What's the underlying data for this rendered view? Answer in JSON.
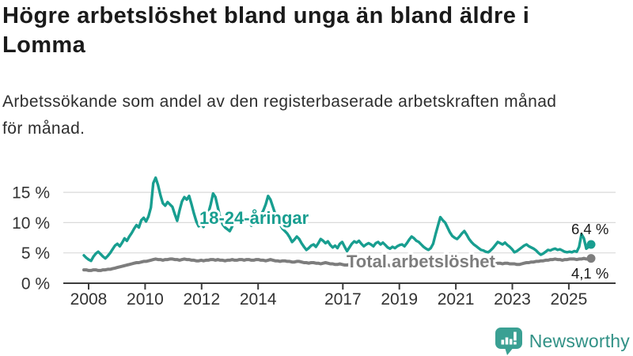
{
  "header": {
    "title": "Högre arbetslöshet bland unga än bland äldre i Lomma",
    "subtitle": "Arbetssökande som andel av den registerbaserade arbetskraften månad för månad."
  },
  "chart_data": {
    "type": "line",
    "title": "Högre arbetslöshet bland unga än bland äldre i Lomma",
    "x_unit": "month",
    "x_start": "2008-01",
    "x_end": "2025-09",
    "x_tick_labels": [
      "2008",
      "2010",
      "2012",
      "2014",
      "2017",
      "2019",
      "2021",
      "2023",
      "2025"
    ],
    "y_ticks": [
      0,
      5,
      10,
      15
    ],
    "y_tick_labels": [
      "0 %",
      "5 %",
      "10 %",
      "15 %"
    ],
    "ylim": [
      0,
      18.5
    ],
    "grid": "horizontal",
    "legend_position": "inline-labels",
    "series": [
      {
        "name": "18-24-åringar",
        "color": "#189e90",
        "end_label": "6,4 %",
        "end_value": 6.4,
        "values": [
          4.6,
          4.2,
          3.9,
          3.7,
          4.4,
          4.9,
          5.2,
          4.8,
          4.4,
          4.1,
          4.5,
          5.0,
          5.6,
          6.2,
          6.5,
          6.1,
          6.7,
          7.4,
          7.0,
          7.7,
          8.3,
          9.0,
          9.6,
          9.2,
          10.4,
          10.8,
          10.2,
          11.0,
          12.5,
          16.5,
          17.4,
          16.2,
          14.5,
          13.2,
          12.8,
          13.4,
          13.0,
          12.6,
          11.4,
          10.3,
          12.0,
          13.5,
          14.2,
          13.8,
          14.4,
          13.0,
          11.5,
          10.2,
          9.4,
          9.8,
          9.3,
          10.5,
          11.5,
          13.0,
          14.8,
          14.2,
          12.5,
          10.8,
          9.7,
          9.2,
          8.9,
          8.6,
          9.4,
          10.2,
          11.0,
          11.8,
          11.2,
          10.4,
          10.9,
          10.2,
          9.5,
          9.8,
          10.2,
          10.8,
          11.3,
          12.0,
          13.0,
          14.4,
          13.8,
          12.6,
          11.4,
          10.5,
          9.7,
          9.0,
          8.6,
          8.2,
          7.6,
          6.8,
          7.2,
          7.7,
          7.3,
          6.6,
          6.0,
          5.5,
          5.8,
          6.2,
          6.4,
          6.0,
          6.6,
          7.3,
          7.0,
          6.6,
          6.9,
          6.3,
          5.9,
          6.2,
          5.8,
          6.5,
          6.8,
          6.0,
          5.3,
          5.9,
          6.5,
          6.9,
          6.7,
          7.0,
          6.5,
          6.1,
          6.4,
          6.6,
          6.4,
          6.1,
          6.6,
          6.8,
          6.4,
          6.7,
          6.3,
          5.9,
          5.7,
          6.0,
          5.8,
          6.1,
          6.3,
          6.4,
          6.1,
          6.6,
          7.2,
          7.7,
          7.4,
          7.0,
          6.8,
          6.4,
          6.0,
          5.7,
          5.5,
          5.8,
          6.5,
          8.1,
          9.5,
          10.9,
          10.4,
          10.0,
          9.2,
          8.4,
          7.8,
          7.5,
          7.3,
          7.7,
          8.2,
          8.6,
          8.0,
          7.3,
          6.8,
          6.4,
          6.1,
          5.8,
          5.5,
          5.4,
          5.2,
          5.1,
          5.4,
          5.8,
          6.3,
          6.8,
          6.6,
          6.4,
          6.7,
          6.3,
          6.0,
          5.6,
          5.1,
          5.3,
          5.6,
          5.9,
          6.2,
          6.4,
          6.1,
          5.9,
          5.7,
          5.4,
          5.0,
          4.7,
          4.9,
          5.2,
          5.5,
          5.4,
          5.6,
          5.7,
          5.5,
          5.6,
          5.4,
          5.2,
          5.1,
          5.2,
          5.1,
          5.3,
          5.2,
          6.0,
          8.1,
          7.4,
          5.7,
          6.0,
          6.4
        ]
      },
      {
        "name": "Total arbetslöshet",
        "color": "#7d7d7d",
        "end_label": "4,1 %",
        "end_value": 4.1,
        "values": [
          2.2,
          2.2,
          2.1,
          2.1,
          2.2,
          2.2,
          2.1,
          2.1,
          2.2,
          2.2,
          2.3,
          2.3,
          2.4,
          2.5,
          2.6,
          2.7,
          2.8,
          2.9,
          3.0,
          3.1,
          3.2,
          3.3,
          3.4,
          3.4,
          3.5,
          3.6,
          3.6,
          3.7,
          3.8,
          3.9,
          4.0,
          3.9,
          3.9,
          3.8,
          3.9,
          3.9,
          4.0,
          4.0,
          3.9,
          3.9,
          3.8,
          3.9,
          4.0,
          3.9,
          3.9,
          3.8,
          3.8,
          3.7,
          3.7,
          3.8,
          3.7,
          3.8,
          3.8,
          3.9,
          3.9,
          3.8,
          3.9,
          3.8,
          3.8,
          3.7,
          3.8,
          3.8,
          3.9,
          3.8,
          3.8,
          3.9,
          3.9,
          3.8,
          3.9,
          3.9,
          3.8,
          3.8,
          3.9,
          3.9,
          3.8,
          3.8,
          3.7,
          3.8,
          3.9,
          3.8,
          3.7,
          3.7,
          3.6,
          3.7,
          3.7,
          3.6,
          3.6,
          3.5,
          3.5,
          3.6,
          3.6,
          3.5,
          3.4,
          3.4,
          3.3,
          3.4,
          3.4,
          3.3,
          3.3,
          3.2,
          3.3,
          3.4,
          3.3,
          3.2,
          3.2,
          3.1,
          3.1,
          3.2,
          3.1,
          3.0,
          3.0,
          3.1,
          3.1,
          3.2,
          3.1,
          3.0,
          3.0,
          3.1,
          3.0,
          3.0,
          3.0,
          2.9,
          3.0,
          3.0,
          2.9,
          3.0,
          3.1,
          3.0,
          2.9,
          3.0,
          3.0,
          3.1,
          3.1,
          3.1,
          3.0,
          3.1,
          3.2,
          3.2,
          3.3,
          3.2,
          3.2,
          3.2,
          3.3,
          3.3,
          3.3,
          3.4,
          3.5,
          3.8,
          4.0,
          4.1,
          4.2,
          4.1,
          4.1,
          4.0,
          4.0,
          3.9,
          3.9,
          3.9,
          3.8,
          3.8,
          3.7,
          3.7,
          3.6,
          3.5,
          3.5,
          3.4,
          3.4,
          3.3,
          3.3,
          3.3,
          3.2,
          3.2,
          3.2,
          3.3,
          3.3,
          3.2,
          3.3,
          3.3,
          3.2,
          3.2,
          3.2,
          3.1,
          3.1,
          3.2,
          3.3,
          3.4,
          3.4,
          3.5,
          3.5,
          3.6,
          3.6,
          3.7,
          3.7,
          3.8,
          3.8,
          3.9,
          3.9,
          4.0,
          3.9,
          3.9,
          3.8,
          3.9,
          3.9,
          4.0,
          4.0,
          4.0,
          3.9,
          4.0,
          4.0,
          4.1,
          4.0,
          4.0,
          4.1
        ]
      }
    ]
  },
  "footer": {
    "brand": "Newsworthy"
  },
  "colors": {
    "youth_line": "#189e90",
    "total_line": "#7d7d7d",
    "gridline": "#d9d9d9",
    "axis": "#3c3c3c",
    "axis_text": "#333333",
    "annotation_text": "#1a1a1a",
    "logo_teal": "#3aa093",
    "brand_text": "#319186",
    "background": "#ffffff"
  }
}
